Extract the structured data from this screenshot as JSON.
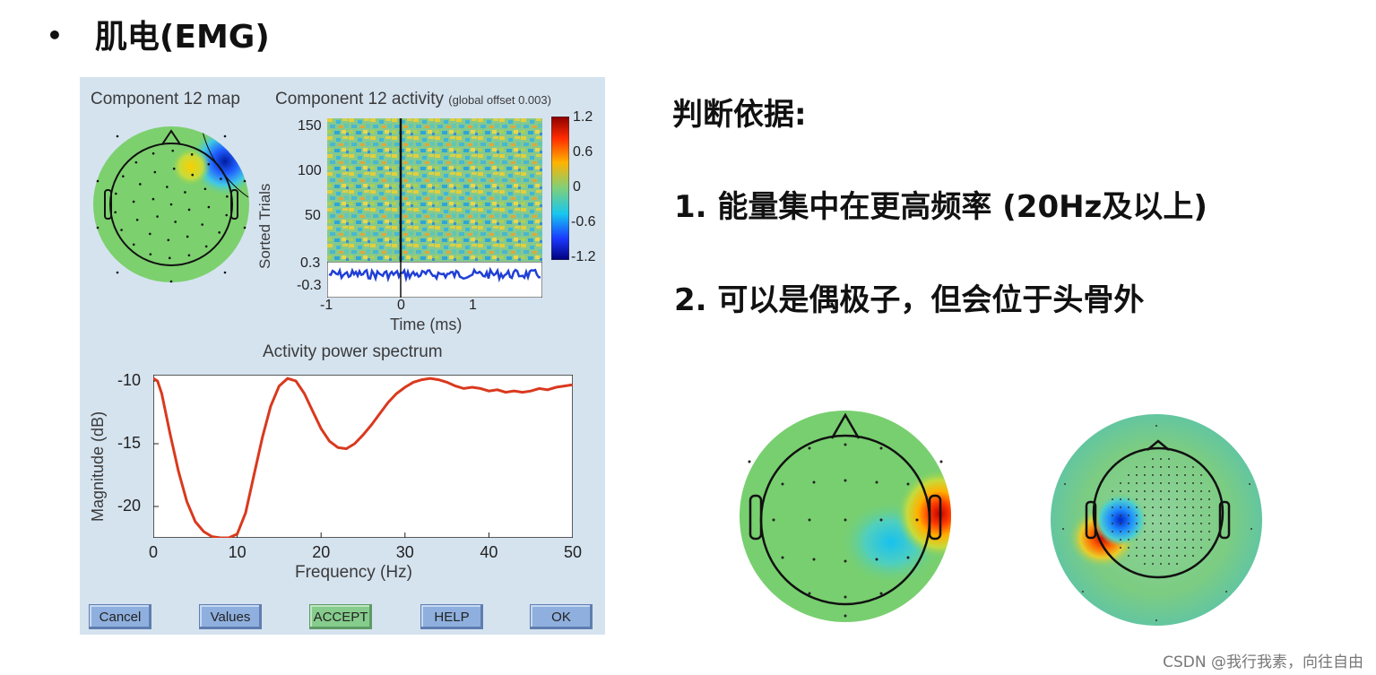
{
  "slide": {
    "title": "肌电(EMG)"
  },
  "eeg_window": {
    "map_title": "Component 12 map",
    "activity_title": "Component 12 activity",
    "activity_offset": "(global offset 0.003)",
    "activity_ylabel": "Sorted Trials",
    "activity_yticks": [
      "150",
      "100",
      "50"
    ],
    "colorbar_ticks": [
      "1.2",
      "0.6",
      "0",
      "-0.6",
      "-1.2"
    ],
    "erp_ticks": [
      "0.3",
      "-0.3"
    ],
    "time_ticks": [
      "-1",
      "0",
      "1"
    ],
    "time_label": "Time (ms)",
    "spectrum_title": "Activity power spectrum",
    "buttons": {
      "cancel": "Cancel",
      "values": "Values",
      "accept": "ACCEPT",
      "help": "HELP",
      "ok": "OK"
    },
    "colors": {
      "panel_bg": "#d5e3ef",
      "trace": "#d9391e",
      "erp": "#1f3fd6"
    }
  },
  "chart_data": {
    "type": "line",
    "title": "Activity power spectrum",
    "xlabel": "Frequency (Hz)",
    "ylabel": "Magnitude (dB)",
    "xlim": [
      0,
      50
    ],
    "ylim": [
      -22.5,
      -9.5
    ],
    "xticks": [
      "0",
      "10",
      "20",
      "30",
      "40",
      "50"
    ],
    "yticks": [
      "-10",
      "-15",
      "-20"
    ],
    "x": [
      0,
      0.5,
      1,
      2,
      3,
      4,
      5,
      6,
      7,
      8,
      9,
      10,
      11,
      12,
      13,
      14,
      15,
      16,
      17,
      18,
      19,
      20,
      21,
      22,
      23,
      24,
      25,
      26,
      27,
      28,
      29,
      30,
      31,
      32,
      33,
      34,
      35,
      36,
      37,
      38,
      39,
      40,
      41,
      42,
      43,
      44,
      45,
      46,
      47,
      48,
      49,
      50
    ],
    "y": [
      -9.8,
      -10.0,
      -11.0,
      -14.2,
      -17.2,
      -19.6,
      -21.2,
      -22.0,
      -22.4,
      -22.5,
      -22.5,
      -22.2,
      -20.5,
      -17.5,
      -14.5,
      -12.0,
      -10.4,
      -9.8,
      -10.0,
      -11.0,
      -12.4,
      -13.8,
      -14.8,
      -15.3,
      -15.4,
      -15.0,
      -14.3,
      -13.5,
      -12.6,
      -11.7,
      -11.0,
      -10.5,
      -10.1,
      -9.9,
      -9.8,
      -9.9,
      -10.1,
      -10.4,
      -10.6,
      -10.5,
      -10.6,
      -10.8,
      -10.7,
      -10.9,
      -10.8,
      -10.9,
      -10.8,
      -10.6,
      -10.7,
      -10.5,
      -10.4,
      -10.3
    ],
    "grid": false
  },
  "criteria": {
    "heading": "判断依据:",
    "item1": "1.  能量集中在更高频率 (20Hz及以上)",
    "item2": "2.  可以是偶极子，但会位于头骨外"
  },
  "watermark": "CSDN @我行我素，向往自由"
}
